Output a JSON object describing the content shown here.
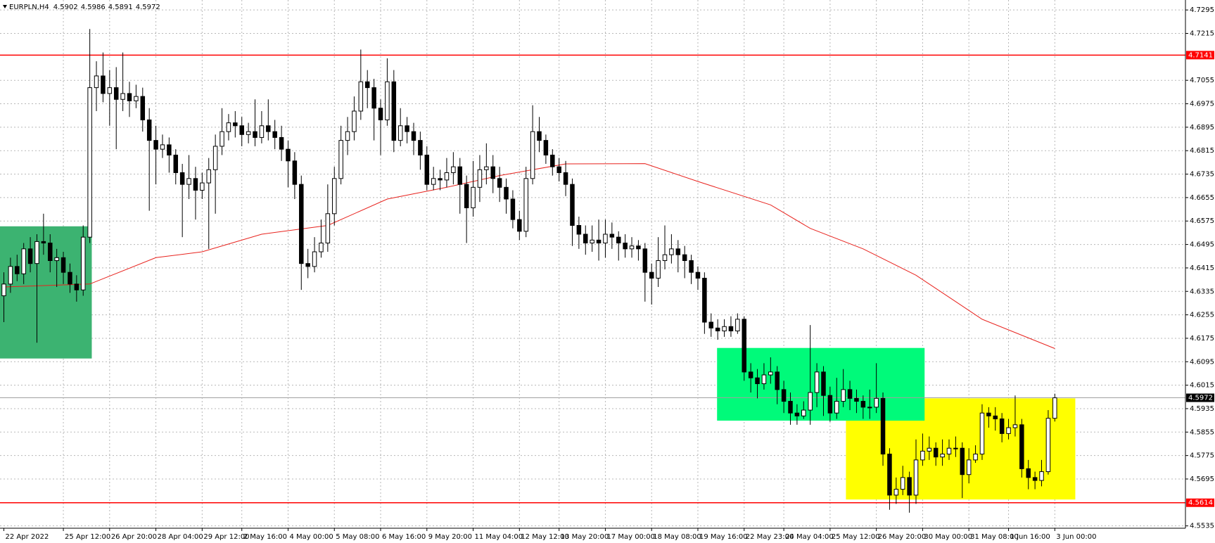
{
  "chart_data": {
    "type": "candlestick",
    "title": "EURPLN,H4",
    "categories": [
      "22 Apr 2022",
      null,
      null,
      null,
      null,
      null,
      null,
      null,
      null,
      "25 Apr 12:00",
      null,
      null,
      null,
      null,
      null,
      null,
      "26 Apr 20:00",
      null,
      null,
      null,
      null,
      null,
      null,
      "28 Apr 04:00",
      null,
      null,
      null,
      null,
      null,
      null,
      "29 Apr 12:00",
      null,
      null,
      null,
      null,
      null,
      "2 May 16:00",
      null,
      null,
      null,
      null,
      null,
      null,
      "4 May 00:00",
      null,
      null,
      null,
      null,
      null,
      null,
      "5 May 08:00",
      null,
      null,
      null,
      null,
      null,
      null,
      "6 May 16:00",
      null,
      null,
      null,
      null,
      null,
      null,
      "9 May 20:00",
      null,
      null,
      null,
      null,
      null,
      null,
      "11 May 04:00",
      null,
      null,
      null,
      null,
      null,
      null,
      "12 May 12:00",
      null,
      null,
      null,
      null,
      null,
      "13 May 20:00",
      null,
      null,
      null,
      null,
      null,
      null,
      "17 May 00:00",
      null,
      null,
      null,
      null,
      null,
      null,
      "18 May 08:00",
      null,
      null,
      null,
      null,
      null,
      null,
      "19 May 16:00",
      null,
      null,
      null,
      null,
      null,
      null,
      "22 May 23:00",
      null,
      null,
      null,
      null,
      null,
      "24 May 04:00",
      null,
      null,
      null,
      null,
      null,
      null,
      "25 May 12:00",
      null,
      null,
      null,
      null,
      null,
      null,
      "26 May 20:00",
      null,
      null,
      null,
      null,
      null,
      null,
      "30 May 00:00",
      null,
      null,
      null,
      null,
      null,
      null,
      "31 May 08:00",
      null,
      null,
      null,
      null,
      null,
      "1 Jun 16:00",
      null,
      null,
      null,
      null,
      null,
      null,
      "3 Jun 00:00"
    ],
    "open": [
      4.632,
      4.636,
      4.642,
      4.6395,
      4.648,
      4.643,
      4.6505,
      4.65,
      4.644,
      4.645,
      4.64,
      4.636,
      4.634,
      4.652,
      4.703,
      4.707,
      4.701,
      4.703,
      4.699,
      4.701,
      4.6985,
      4.7,
      4.692,
      4.685,
      4.682,
      4.6835,
      4.68,
      4.674,
      4.67,
      4.672,
      4.668,
      4.6705,
      4.675,
      4.683,
      4.688,
      4.691,
      4.69,
      4.687,
      4.688,
      4.686,
      4.69,
      4.688,
      4.686,
      4.682,
      4.678,
      4.67,
      4.643,
      4.642,
      4.647,
      4.65,
      4.66,
      4.672,
      4.685,
      4.688,
      4.695,
      4.705,
      4.703,
      4.696,
      4.692,
      4.705,
      4.685,
      4.69,
      4.688,
      4.685,
      4.68,
      4.67,
      4.672,
      4.6715,
      4.674,
      4.676,
      4.67,
      4.662,
      4.669,
      4.675,
      4.676,
      4.672,
      4.669,
      4.665,
      4.658,
      4.654,
      4.672,
      4.688,
      4.685,
      4.68,
      4.676,
      4.674,
      4.67,
      4.656,
      4.653,
      4.65,
      4.651,
      4.65,
      4.653,
      4.652,
      4.65,
      4.648,
      4.649,
      4.648,
      4.64,
      4.638,
      4.644,
      4.646,
      4.648,
      4.646,
      4.644,
      4.64,
      4.638,
      4.623,
      4.621,
      4.62,
      4.6215,
      4.62,
      4.624,
      4.606,
      4.604,
      4.602,
      4.605,
      4.606,
      4.6,
      4.596,
      4.592,
      4.591,
      4.593,
      4.599,
      4.606,
      4.598,
      4.592,
      4.596,
      4.6,
      4.597,
      4.596,
      4.594,
      4.594,
      4.597,
      4.578,
      4.564,
      4.566,
      4.57,
      4.564,
      4.576,
      4.579,
      4.58,
      4.577,
      4.578,
      4.58,
      4.58,
      4.571,
      4.576,
      4.578,
      4.592,
      4.591,
      4.59,
      4.585,
      4.587,
      4.588,
      4.573,
      4.57,
      4.569,
      4.572,
      4.5902
    ],
    "high": [
      4.64,
      4.645,
      4.646,
      4.65,
      4.652,
      4.653,
      4.66,
      4.653,
      4.648,
      4.647,
      4.643,
      4.639,
      4.656,
      4.723,
      4.712,
      4.715,
      4.709,
      4.71,
      4.715,
      4.705,
      4.704,
      4.703,
      4.696,
      4.69,
      4.687,
      4.686,
      4.682,
      4.677,
      4.68,
      4.676,
      4.674,
      4.679,
      4.687,
      4.696,
      4.694,
      4.695,
      4.693,
      4.691,
      4.699,
      4.695,
      4.699,
      4.692,
      4.69,
      4.685,
      4.681,
      4.673,
      4.648,
      4.652,
      4.658,
      4.67,
      4.676,
      4.69,
      4.693,
      4.7,
      4.716,
      4.709,
      4.706,
      4.699,
      4.713,
      4.709,
      4.696,
      4.693,
      4.691,
      4.688,
      4.683,
      4.676,
      4.675,
      4.679,
      4.681,
      4.679,
      4.673,
      4.678,
      4.68,
      4.684,
      4.68,
      4.676,
      4.672,
      4.668,
      4.661,
      4.676,
      4.697,
      4.693,
      4.687,
      4.682,
      4.679,
      4.678,
      4.672,
      4.659,
      4.656,
      4.656,
      4.658,
      4.658,
      4.657,
      4.654,
      4.653,
      4.652,
      4.651,
      4.65,
      4.643,
      4.652,
      4.656,
      4.653,
      4.651,
      4.649,
      4.646,
      4.642,
      4.64,
      4.626,
      4.624,
      4.624,
      4.625,
      4.626,
      4.625,
      4.609,
      4.607,
      4.609,
      4.611,
      4.608,
      4.603,
      4.599,
      4.595,
      4.596,
      4.622,
      4.609,
      4.608,
      4.601,
      4.604,
      4.607,
      4.603,
      4.6,
      4.598,
      4.6,
      4.609,
      4.599,
      4.58,
      4.57,
      4.574,
      4.572,
      4.583,
      4.585,
      4.584,
      4.582,
      4.583,
      4.583,
      4.584,
      4.582,
      4.58,
      4.581,
      4.595,
      4.594,
      4.594,
      4.592,
      4.59,
      4.598,
      4.59,
      4.576,
      4.572,
      4.576,
      4.593,
      4.5986
    ],
    "low": [
      4.623,
      4.633,
      4.637,
      4.636,
      4.64,
      4.616,
      4.646,
      4.64,
      4.635,
      4.636,
      4.633,
      4.63,
      4.632,
      4.65,
      4.695,
      4.698,
      4.69,
      4.682,
      4.695,
      4.693,
      4.696,
      4.688,
      4.661,
      4.67,
      4.679,
      4.674,
      4.67,
      4.652,
      4.665,
      4.658,
      4.665,
      4.648,
      4.66,
      4.68,
      4.685,
      4.686,
      4.683,
      4.684,
      4.683,
      4.684,
      4.685,
      4.682,
      4.678,
      4.669,
      4.665,
      4.634,
      4.638,
      4.64,
      4.645,
      4.647,
      4.656,
      4.67,
      4.68,
      4.685,
      4.692,
      4.696,
      4.685,
      4.68,
      4.69,
      4.681,
      4.683,
      4.684,
      4.68,
      4.675,
      4.668,
      4.668,
      4.668,
      4.669,
      4.67,
      4.66,
      4.65,
      4.659,
      4.664,
      4.67,
      4.667,
      4.664,
      4.66,
      4.655,
      4.651,
      4.652,
      4.67,
      4.681,
      4.677,
      4.673,
      4.671,
      4.666,
      4.649,
      4.648,
      4.646,
      4.647,
      4.644,
      4.645,
      4.648,
      4.644,
      4.645,
      4.645,
      4.644,
      4.63,
      4.629,
      4.635,
      4.641,
      4.643,
      4.64,
      4.638,
      4.636,
      4.634,
      4.619,
      4.618,
      4.617,
      4.618,
      4.618,
      4.619,
      4.603,
      4.599,
      4.597,
      4.6,
      4.602,
      4.595,
      4.592,
      4.588,
      4.588,
      4.59,
      4.588,
      4.594,
      4.591,
      4.589,
      4.59,
      4.594,
      4.593,
      4.592,
      4.59,
      4.59,
      4.592,
      4.574,
      4.559,
      4.561,
      4.564,
      4.558,
      4.561,
      4.574,
      4.576,
      4.574,
      4.574,
      4.576,
      4.577,
      4.563,
      4.568,
      4.575,
      4.576,
      4.587,
      4.586,
      4.582,
      4.583,
      4.584,
      4.57,
      4.566,
      4.566,
      4.567,
      4.571,
      4.5891
    ],
    "close": [
      4.636,
      4.642,
      4.6395,
      4.648,
      4.643,
      4.6505,
      4.65,
      4.644,
      4.645,
      4.64,
      4.636,
      4.634,
      4.652,
      4.703,
      4.707,
      4.701,
      4.703,
      4.699,
      4.701,
      4.6985,
      4.7,
      4.692,
      4.685,
      4.682,
      4.6835,
      4.68,
      4.674,
      4.67,
      4.672,
      4.668,
      4.6705,
      4.675,
      4.683,
      4.688,
      4.691,
      4.69,
      4.687,
      4.688,
      4.686,
      4.69,
      4.688,
      4.686,
      4.682,
      4.678,
      4.67,
      4.643,
      4.642,
      4.647,
      4.65,
      4.66,
      4.672,
      4.685,
      4.688,
      4.695,
      4.705,
      4.703,
      4.696,
      4.692,
      4.705,
      4.685,
      4.69,
      4.688,
      4.685,
      4.68,
      4.67,
      4.672,
      4.6715,
      4.674,
      4.676,
      4.67,
      4.662,
      4.669,
      4.675,
      4.676,
      4.672,
      4.669,
      4.665,
      4.658,
      4.654,
      4.672,
      4.688,
      4.685,
      4.68,
      4.676,
      4.674,
      4.67,
      4.656,
      4.653,
      4.65,
      4.651,
      4.65,
      4.653,
      4.652,
      4.65,
      4.648,
      4.649,
      4.648,
      4.64,
      4.638,
      4.644,
      4.646,
      4.648,
      4.646,
      4.644,
      4.64,
      4.638,
      4.623,
      4.621,
      4.62,
      4.6215,
      4.62,
      4.624,
      4.606,
      4.604,
      4.602,
      4.605,
      4.606,
      4.6,
      4.596,
      4.592,
      4.591,
      4.593,
      4.599,
      4.606,
      4.598,
      4.592,
      4.596,
      4.6,
      4.597,
      4.596,
      4.594,
      4.594,
      4.597,
      4.578,
      4.564,
      4.566,
      4.57,
      4.564,
      4.576,
      4.579,
      4.58,
      4.577,
      4.578,
      4.58,
      4.58,
      4.571,
      4.576,
      4.578,
      4.592,
      4.591,
      4.59,
      4.585,
      4.587,
      4.588,
      4.573,
      4.57,
      4.569,
      4.572,
      4.5902,
      4.5972
    ],
    "ma": {
      "color": "#e8231e",
      "x": [
        0,
        13,
        23,
        30,
        39,
        49,
        58,
        67,
        75,
        85,
        97,
        105,
        116,
        122,
        130,
        138,
        144,
        148,
        159
      ],
      "values": [
        4.635,
        4.636,
        4.645,
        4.647,
        4.653,
        4.656,
        4.665,
        4.669,
        4.673,
        4.677,
        4.6771,
        4.671,
        4.663,
        4.655,
        4.648,
        4.639,
        4.63,
        4.624,
        4.614
      ]
    },
    "zones": [
      {
        "color": "#3cb371",
        "x": [
          -0.6,
          13.3
        ],
        "y": [
          4.6557,
          4.6106
        ]
      },
      {
        "color": "#ffff00",
        "x": [
          127.4,
          162.1
        ],
        "y": [
          4.597,
          4.5625
        ]
      },
      {
        "color": "#00fa7a",
        "x": [
          107.9,
          139.3
        ],
        "y": [
          4.6142,
          4.5894
        ]
      }
    ],
    "levels": [
      {
        "value": 4.7141,
        "color": "#ff0000"
      },
      {
        "value": 4.5614,
        "color": "#ff0000"
      }
    ],
    "ylim": [
      4.5527,
      4.7329
    ],
    "yticks": [
      4.7295,
      4.7215,
      4.7055,
      4.6975,
      4.6895,
      4.6815,
      4.6735,
      4.6655,
      4.6575,
      4.6495,
      4.6415,
      4.6335,
      4.6255,
      4.6175,
      4.6095,
      4.6015,
      4.5935,
      4.5855,
      4.5775,
      4.5695,
      4.5535
    ],
    "grid": true
  }
}
